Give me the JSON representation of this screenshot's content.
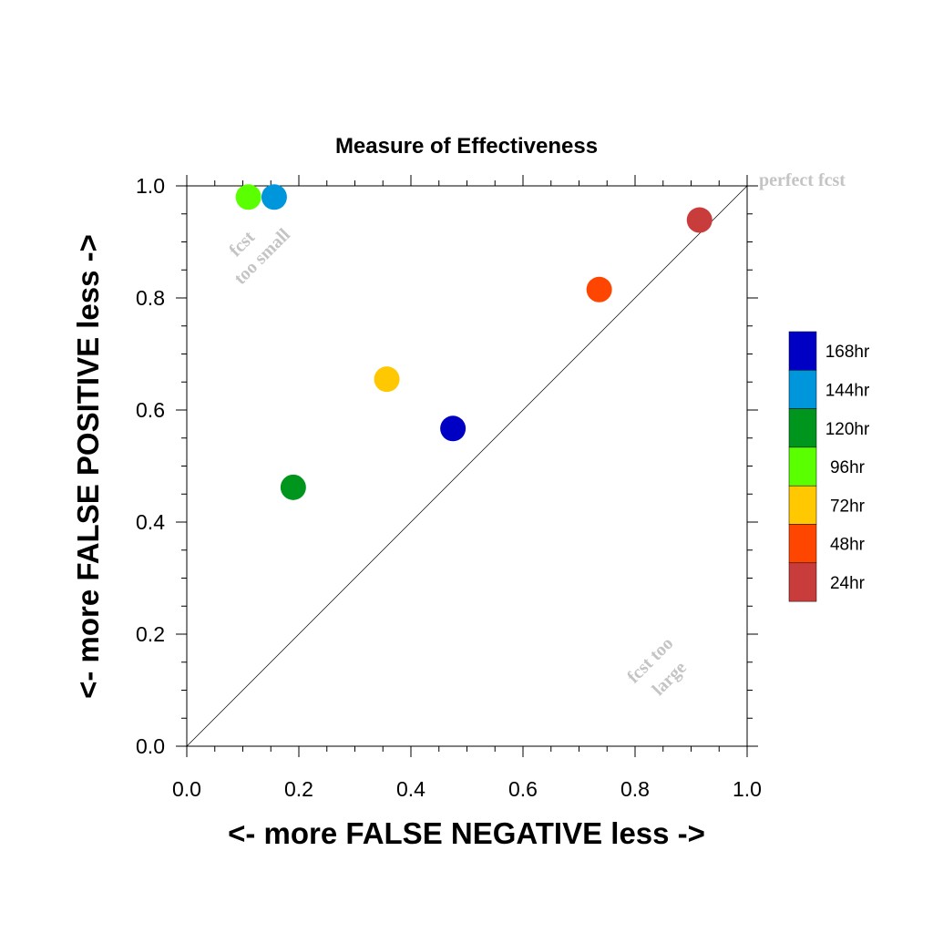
{
  "chart_data": {
    "type": "scatter",
    "title": "Measure of Effectiveness",
    "xlabel": "<- more   FALSE NEGATIVE   less ->",
    "ylabel": "<- more   FALSE POSITIVE   less ->",
    "xlim": [
      0,
      1
    ],
    "ylim": [
      0,
      1
    ],
    "x_ticks": [
      "0.0",
      "0.2",
      "0.4",
      "0.6",
      "0.8",
      "1.0"
    ],
    "y_ticks": [
      "0.0",
      "0.2",
      "0.4",
      "0.6",
      "0.8",
      "1.0"
    ],
    "grid": false,
    "legend_position": "right",
    "reference_line": {
      "from": [
        0,
        0
      ],
      "to": [
        1,
        1
      ]
    },
    "series": [
      {
        "name": "168hr",
        "color": "#0000c4",
        "x": 0.475,
        "y": 0.567
      },
      {
        "name": "144hr",
        "color": "#0096dc",
        "x": 0.156,
        "y": 0.98
      },
      {
        "name": "120hr",
        "color": "#00961e",
        "x": 0.19,
        "y": 0.462
      },
      {
        "name": "96hr",
        "color": "#5aff00",
        "x": 0.11,
        "y": 0.98
      },
      {
        "name": "72hr",
        "color": "#ffc800",
        "x": 0.357,
        "y": 0.655
      },
      {
        "name": "48hr",
        "color": "#ff4600",
        "x": 0.736,
        "y": 0.815
      },
      {
        "name": "24hr",
        "color": "#c83c3c",
        "x": 0.915,
        "y": 0.939
      }
    ],
    "annotations": [
      {
        "key": "perfect",
        "text": "perfect fcst"
      },
      {
        "key": "small_1",
        "text": "fcst"
      },
      {
        "key": "small_2",
        "text": "too small"
      },
      {
        "key": "large_1",
        "text": "fcst too"
      },
      {
        "key": "large_2",
        "text": "large"
      }
    ]
  }
}
